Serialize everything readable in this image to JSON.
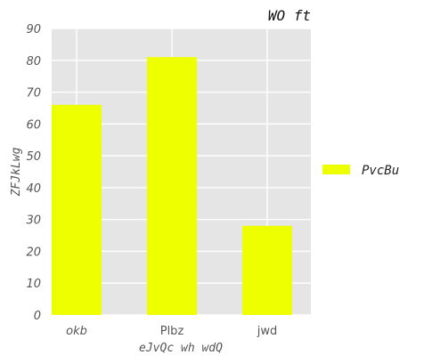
{
  "chart_data": {
    "type": "bar",
    "title": "WO ft",
    "xlabel": "eJvQc  wh wdQ",
    "ylabel": "ZFJkLwg",
    "categories": [
      "okb",
      "Plbz",
      "jwd"
    ],
    "series": [
      {
        "name": "PvcBu",
        "values": [
          66,
          81,
          28
        ],
        "color": "#eeff00"
      }
    ],
    "ylim": [
      0,
      90
    ],
    "yticks": [
      "0",
      "10",
      "20",
      "30",
      "40",
      "50",
      "60",
      "70",
      "80",
      "90"
    ],
    "grid": true,
    "legend_position": "right",
    "background_color": "#e5e5e5"
  }
}
